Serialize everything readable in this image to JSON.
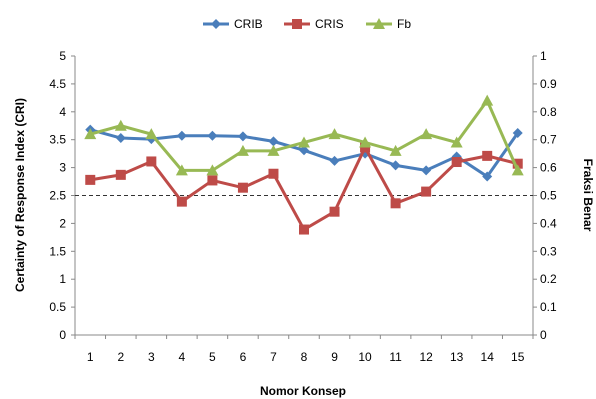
{
  "chart_data": {
    "type": "line",
    "title": "",
    "xlabel": "Nomor Konsep",
    "ylabel": "Certainty of Response Index (CRI)",
    "y2label": "Fraksi Benar",
    "categories": [
      "1",
      "2",
      "3",
      "4",
      "5",
      "6",
      "7",
      "8",
      "9",
      "10",
      "11",
      "12",
      "13",
      "14",
      "15"
    ],
    "ylim": [
      0,
      5
    ],
    "yticks": [
      "0",
      "0.5",
      "1",
      "1.5",
      "2",
      "2.5",
      "3",
      "3.5",
      "4",
      "4.5",
      "5"
    ],
    "y2lim": [
      0,
      1
    ],
    "y2ticks": [
      "0",
      "0.1",
      "0.2",
      "0.3",
      "0.4",
      "0.5",
      "0.6",
      "0.7",
      "0.8",
      "0.9",
      "1"
    ],
    "reference_line": {
      "axis": "y",
      "value": 2.5,
      "style": "dashed"
    },
    "grid": false,
    "legend": "top-center",
    "series": [
      {
        "name": "CRIB",
        "color": "#4a7ebb",
        "marker": "diamond",
        "axis": "left",
        "values": [
          3.68,
          3.53,
          3.51,
          3.57,
          3.57,
          3.56,
          3.47,
          3.31,
          3.12,
          3.25,
          3.04,
          2.95,
          3.2,
          2.84,
          3.62
        ]
      },
      {
        "name": "CRIS",
        "color": "#be4b48",
        "marker": "square",
        "axis": "left",
        "values": [
          2.78,
          2.87,
          3.11,
          2.39,
          2.77,
          2.64,
          2.89,
          1.89,
          2.21,
          3.36,
          2.36,
          2.57,
          3.1,
          3.21,
          3.07
        ]
      },
      {
        "name": "Fb",
        "color": "#98b954",
        "marker": "triangle",
        "axis": "right",
        "values": [
          0.72,
          0.75,
          0.72,
          0.59,
          0.59,
          0.66,
          0.66,
          0.69,
          0.72,
          0.69,
          0.66,
          0.72,
          0.69,
          0.84,
          0.59
        ]
      }
    ]
  }
}
